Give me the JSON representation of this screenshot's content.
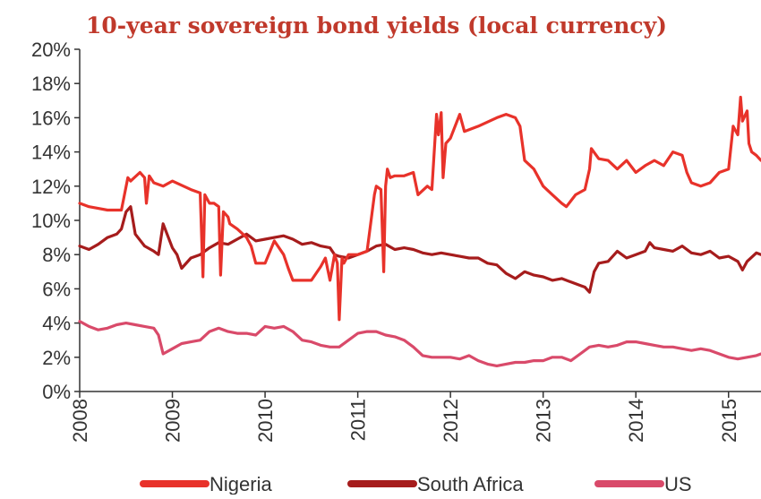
{
  "chart_data": {
    "type": "line",
    "title": "10-year sovereign bond yields (local currency)",
    "xlabel": "",
    "ylabel": "",
    "xlim": [
      2008.0,
      2015.35
    ],
    "ylim": [
      0,
      20
    ],
    "y_ticks": [
      0,
      2,
      4,
      6,
      8,
      10,
      12,
      14,
      16,
      18,
      20
    ],
    "y_tick_labels": [
      "0%",
      "2%",
      "4%",
      "6%",
      "8%",
      "10%",
      "12%",
      "14%",
      "16%",
      "18%",
      "20%"
    ],
    "x_ticks": [
      2008,
      2009,
      2010,
      2011,
      2012,
      2013,
      2014,
      2015
    ],
    "x_tick_labels": [
      "2008",
      "2009",
      "2010",
      "2011",
      "2012",
      "2013",
      "2014",
      "2015"
    ],
    "grid": false,
    "legend_position": "bottom",
    "series": [
      {
        "name": "Nigeria",
        "color": "#e8322a",
        "x": [
          2008.0,
          2008.1,
          2008.2,
          2008.3,
          2008.45,
          2008.52,
          2008.55,
          2008.65,
          2008.7,
          2008.72,
          2008.75,
          2008.8,
          2008.9,
          2009.0,
          2009.2,
          2009.3,
          2009.33,
          2009.35,
          2009.38,
          2009.4,
          2009.45,
          2009.5,
          2009.52,
          2009.55,
          2009.6,
          2009.62,
          2009.7,
          2009.8,
          2009.85,
          2009.9,
          2010.0,
          2010.1,
          2010.2,
          2010.25,
          2010.3,
          2010.35,
          2010.5,
          2010.6,
          2010.65,
          2010.7,
          2010.75,
          2010.78,
          2010.8,
          2010.83,
          2010.85,
          2010.88,
          2010.9,
          2010.95,
          2011.0,
          2011.1,
          2011.18,
          2011.2,
          2011.25,
          2011.28,
          2011.3,
          2011.32,
          2011.35,
          2011.4,
          2011.5,
          2011.6,
          2011.65,
          2011.75,
          2011.8,
          2011.85,
          2011.87,
          2011.9,
          2011.92,
          2011.95,
          2012.0,
          2012.1,
          2012.15,
          2012.3,
          2012.5,
          2012.6,
          2012.7,
          2012.75,
          2012.8,
          2012.9,
          2013.0,
          2013.1,
          2013.2,
          2013.25,
          2013.35,
          2013.45,
          2013.5,
          2013.52,
          2013.6,
          2013.7,
          2013.8,
          2013.9,
          2014.0,
          2014.1,
          2014.2,
          2014.3,
          2014.4,
          2014.5,
          2014.55,
          2014.6,
          2014.7,
          2014.8,
          2014.9,
          2015.0,
          2015.05,
          2015.1,
          2015.13,
          2015.15,
          2015.2,
          2015.22,
          2015.25,
          2015.3,
          2015.35
        ],
        "values": [
          11.0,
          10.8,
          10.7,
          10.6,
          10.6,
          12.5,
          12.3,
          12.8,
          12.5,
          11.0,
          12.6,
          12.2,
          12.0,
          12.3,
          11.8,
          11.6,
          6.7,
          11.5,
          11.2,
          11.0,
          11.0,
          10.8,
          6.8,
          10.5,
          10.2,
          9.8,
          9.5,
          9.0,
          8.5,
          7.5,
          7.5,
          8.8,
          8.0,
          7.2,
          6.5,
          6.5,
          6.5,
          7.3,
          7.8,
          6.5,
          8.0,
          7.5,
          4.2,
          7.8,
          7.5,
          7.8,
          8.0,
          8.0,
          8.0,
          8.2,
          11.5,
          12.0,
          11.8,
          7.0,
          12.0,
          13.0,
          12.5,
          12.6,
          12.6,
          12.8,
          11.5,
          12.0,
          11.8,
          16.2,
          15.0,
          16.3,
          12.5,
          14.5,
          14.8,
          16.2,
          15.2,
          15.5,
          16.0,
          16.2,
          16.0,
          15.5,
          13.5,
          13.0,
          12.0,
          11.5,
          11.0,
          10.8,
          11.5,
          11.8,
          13.0,
          14.2,
          13.6,
          13.5,
          13.0,
          13.5,
          12.8,
          13.2,
          13.5,
          13.2,
          14.0,
          13.8,
          12.8,
          12.2,
          12.0,
          12.2,
          12.8,
          13.0,
          15.5,
          15.0,
          17.2,
          15.8,
          16.4,
          14.5,
          14.0,
          13.8,
          13.5
        ]
      },
      {
        "name": "South Africa",
        "color": "#a61c1c",
        "x": [
          2008.0,
          2008.1,
          2008.2,
          2008.3,
          2008.4,
          2008.45,
          2008.5,
          2008.55,
          2008.6,
          2008.7,
          2008.8,
          2008.85,
          2008.9,
          2009.0,
          2009.05,
          2009.1,
          2009.2,
          2009.3,
          2009.4,
          2009.5,
          2009.6,
          2009.7,
          2009.8,
          2009.9,
          2010.0,
          2010.1,
          2010.2,
          2010.3,
          2010.4,
          2010.5,
          2010.6,
          2010.7,
          2010.75,
          2010.8,
          2010.9,
          2011.0,
          2011.1,
          2011.2,
          2011.3,
          2011.4,
          2011.5,
          2011.6,
          2011.7,
          2011.8,
          2011.9,
          2012.0,
          2012.1,
          2012.2,
          2012.3,
          2012.4,
          2012.5,
          2012.6,
          2012.7,
          2012.8,
          2012.9,
          2013.0,
          2013.1,
          2013.2,
          2013.3,
          2013.4,
          2013.45,
          2013.5,
          2013.55,
          2013.6,
          2013.7,
          2013.8,
          2013.9,
          2014.0,
          2014.1,
          2014.15,
          2014.2,
          2014.3,
          2014.4,
          2014.5,
          2014.6,
          2014.7,
          2014.8,
          2014.9,
          2015.0,
          2015.1,
          2015.15,
          2015.2,
          2015.3,
          2015.35
        ],
        "values": [
          8.5,
          8.3,
          8.6,
          9.0,
          9.2,
          9.5,
          10.5,
          10.8,
          9.2,
          8.5,
          8.2,
          8.0,
          9.8,
          8.4,
          8.0,
          7.2,
          7.8,
          8.0,
          8.4,
          8.7,
          8.6,
          8.9,
          9.2,
          8.8,
          8.9,
          9.0,
          9.1,
          8.9,
          8.6,
          8.7,
          8.5,
          8.4,
          8.0,
          7.9,
          7.8,
          8.0,
          8.2,
          8.5,
          8.6,
          8.3,
          8.4,
          8.3,
          8.1,
          8.0,
          8.1,
          8.0,
          7.9,
          7.8,
          7.8,
          7.5,
          7.4,
          6.9,
          6.6,
          7.0,
          6.8,
          6.7,
          6.5,
          6.6,
          6.4,
          6.2,
          6.1,
          5.8,
          7.0,
          7.5,
          7.6,
          8.2,
          7.8,
          8.0,
          8.2,
          8.7,
          8.4,
          8.3,
          8.2,
          8.5,
          8.1,
          8.0,
          8.2,
          7.8,
          7.9,
          7.6,
          7.1,
          7.6,
          8.1,
          8.0
        ]
      },
      {
        "name": "US",
        "color": "#d94a6a",
        "x": [
          2008.0,
          2008.1,
          2008.2,
          2008.3,
          2008.4,
          2008.5,
          2008.6,
          2008.7,
          2008.8,
          2008.85,
          2008.9,
          2009.0,
          2009.1,
          2009.2,
          2009.3,
          2009.4,
          2009.5,
          2009.6,
          2009.7,
          2009.8,
          2009.9,
          2010.0,
          2010.1,
          2010.2,
          2010.3,
          2010.4,
          2010.5,
          2010.6,
          2010.7,
          2010.8,
          2010.9,
          2011.0,
          2011.1,
          2011.2,
          2011.3,
          2011.4,
          2011.5,
          2011.6,
          2011.7,
          2011.8,
          2011.9,
          2012.0,
          2012.1,
          2012.2,
          2012.3,
          2012.4,
          2012.5,
          2012.6,
          2012.7,
          2012.8,
          2012.9,
          2013.0,
          2013.1,
          2013.2,
          2013.3,
          2013.4,
          2013.5,
          2013.6,
          2013.7,
          2013.8,
          2013.9,
          2014.0,
          2014.1,
          2014.2,
          2014.3,
          2014.4,
          2014.5,
          2014.6,
          2014.7,
          2014.8,
          2014.9,
          2015.0,
          2015.1,
          2015.2,
          2015.3,
          2015.35
        ],
        "values": [
          4.1,
          3.8,
          3.6,
          3.7,
          3.9,
          4.0,
          3.9,
          3.8,
          3.7,
          3.3,
          2.2,
          2.5,
          2.8,
          2.9,
          3.0,
          3.5,
          3.7,
          3.5,
          3.4,
          3.4,
          3.3,
          3.8,
          3.7,
          3.8,
          3.5,
          3.0,
          2.9,
          2.7,
          2.6,
          2.6,
          3.0,
          3.4,
          3.5,
          3.5,
          3.3,
          3.2,
          3.0,
          2.6,
          2.1,
          2.0,
          2.0,
          2.0,
          1.9,
          2.1,
          1.8,
          1.6,
          1.5,
          1.6,
          1.7,
          1.7,
          1.8,
          1.8,
          2.0,
          2.0,
          1.8,
          2.2,
          2.6,
          2.7,
          2.6,
          2.7,
          2.9,
          2.9,
          2.8,
          2.7,
          2.6,
          2.6,
          2.5,
          2.4,
          2.5,
          2.4,
          2.2,
          2.0,
          1.9,
          2.0,
          2.1,
          2.2
        ]
      }
    ]
  }
}
